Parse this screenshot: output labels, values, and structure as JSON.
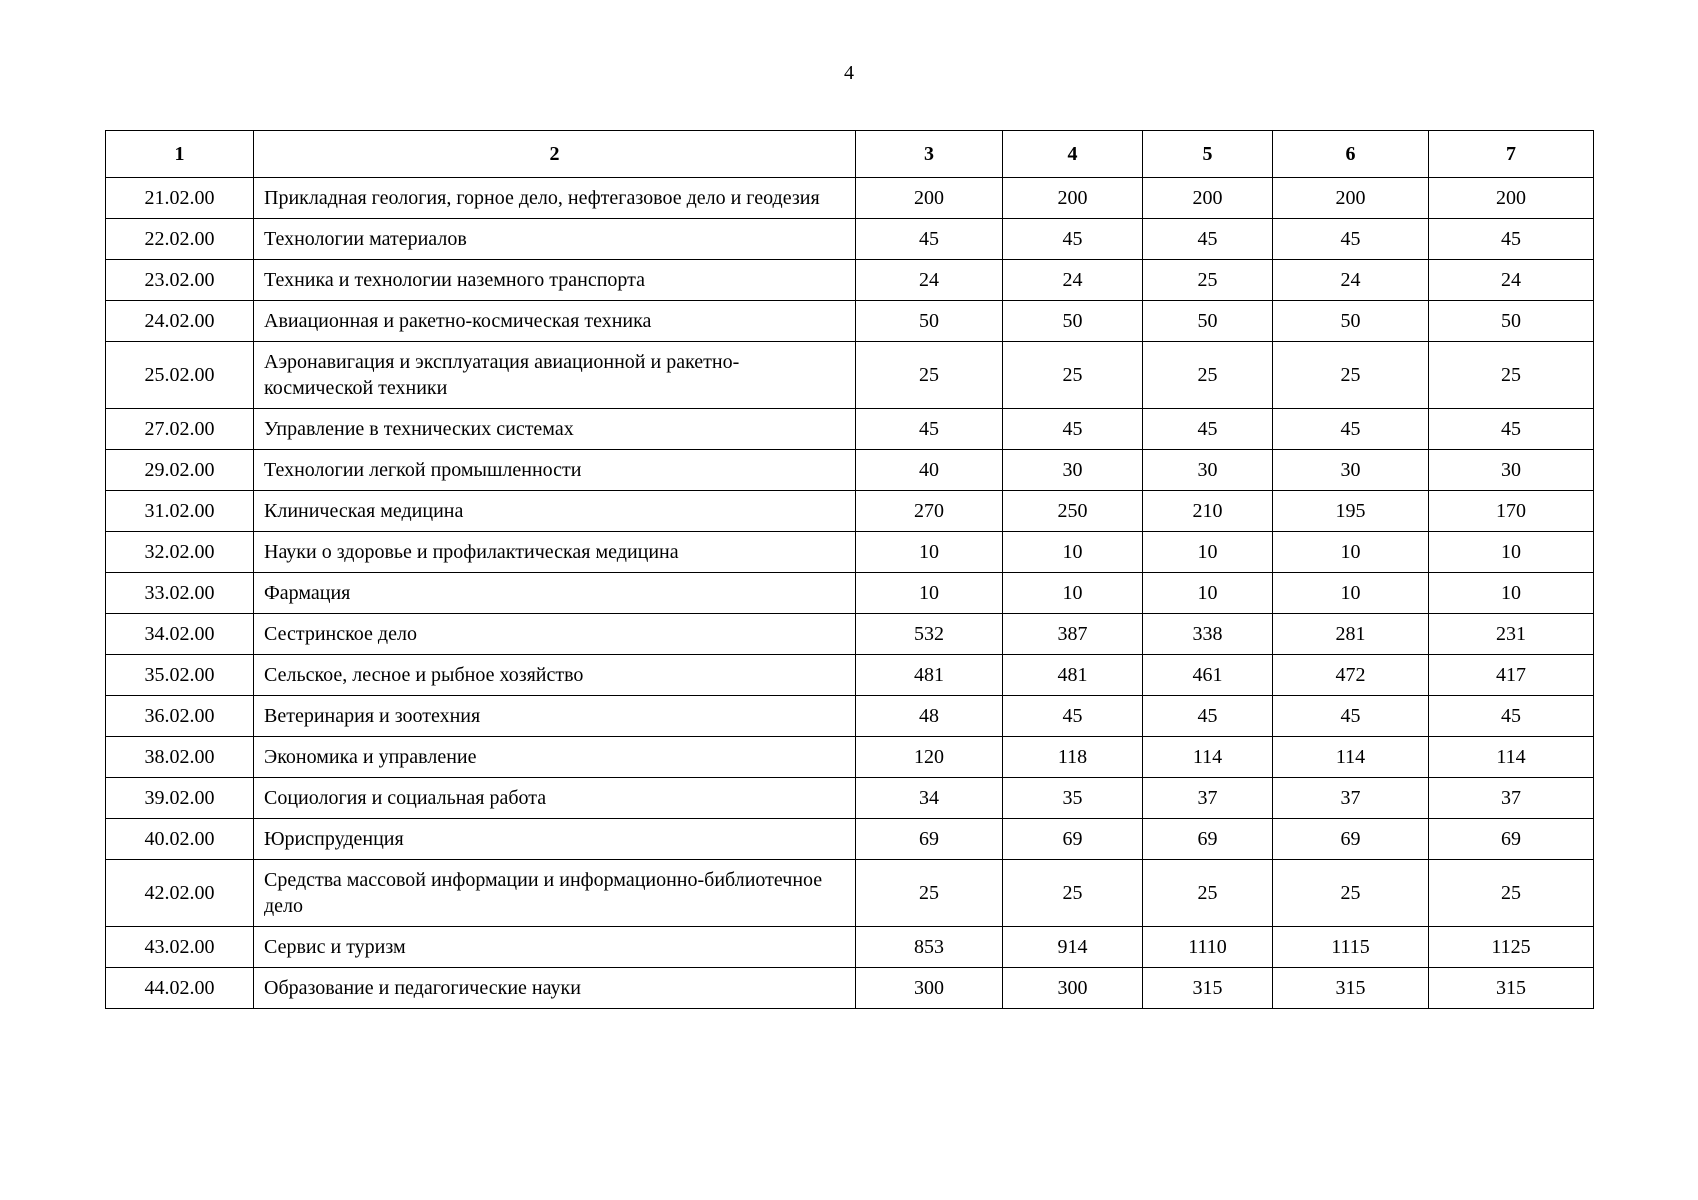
{
  "page": {
    "number": "4"
  },
  "table": {
    "headers": [
      "1",
      "2",
      "3",
      "4",
      "5",
      "6",
      "7"
    ],
    "rows": [
      {
        "code": "21.02.00",
        "name": "Прикладная геология, горное дело, нефтегазовое дело и геодезия",
        "values": [
          "200",
          "200",
          "200",
          "200",
          "200"
        ]
      },
      {
        "code": "22.02.00",
        "name": "Технологии материалов",
        "values": [
          "45",
          "45",
          "45",
          "45",
          "45"
        ]
      },
      {
        "code": "23.02.00",
        "name": "Техника и технологии наземного транспорта",
        "values": [
          "24",
          "24",
          "25",
          "24",
          "24"
        ]
      },
      {
        "code": "24.02.00",
        "name": "Авиационная и ракетно-космическая техника",
        "values": [
          "50",
          "50",
          "50",
          "50",
          "50"
        ]
      },
      {
        "code": "25.02.00",
        "name": "Аэронавигация и эксплуатация авиационной и ракетно-космической техники",
        "values": [
          "25",
          "25",
          "25",
          "25",
          "25"
        ]
      },
      {
        "code": "27.02.00",
        "name": "Управление в технических системах",
        "values": [
          "45",
          "45",
          "45",
          "45",
          "45"
        ]
      },
      {
        "code": "29.02.00",
        "name": "Технологии легкой промышленности",
        "values": [
          "40",
          "30",
          "30",
          "30",
          "30"
        ]
      },
      {
        "code": "31.02.00",
        "name": "Клиническая медицина",
        "values": [
          "270",
          "250",
          "210",
          "195",
          "170"
        ]
      },
      {
        "code": "32.02.00",
        "name": "Науки о здоровье и профилактическая медицина",
        "values": [
          "10",
          "10",
          "10",
          "10",
          "10"
        ]
      },
      {
        "code": "33.02.00",
        "name": "Фармация",
        "values": [
          "10",
          "10",
          "10",
          "10",
          "10"
        ]
      },
      {
        "code": "34.02.00",
        "name": "Сестринское дело",
        "values": [
          "532",
          "387",
          "338",
          "281",
          "231"
        ]
      },
      {
        "code": "35.02.00",
        "name": "Сельское, лесное и рыбное хозяйство",
        "values": [
          "481",
          "481",
          "461",
          "472",
          "417"
        ]
      },
      {
        "code": "36.02.00",
        "name": "Ветеринария и зоотехния",
        "values": [
          "48",
          "45",
          "45",
          "45",
          "45"
        ]
      },
      {
        "code": "38.02.00",
        "name": "Экономика и управление",
        "values": [
          "120",
          "118",
          "114",
          "114",
          "114"
        ]
      },
      {
        "code": "39.02.00",
        "name": "Социология и социальная работа",
        "values": [
          "34",
          "35",
          "37",
          "37",
          "37"
        ]
      },
      {
        "code": "40.02.00",
        "name": "Юриспруденция",
        "values": [
          "69",
          "69",
          "69",
          "69",
          "69"
        ]
      },
      {
        "code": "42.02.00",
        "name": "Средства массовой информации и информационно-библиотечное дело",
        "values": [
          "25",
          "25",
          "25",
          "25",
          "25"
        ]
      },
      {
        "code": "43.02.00",
        "name": "Сервис и туризм",
        "values": [
          "853",
          "914",
          "1110",
          "1115",
          "1125"
        ]
      },
      {
        "code": "44.02.00",
        "name": "Образование и педагогические науки",
        "values": [
          "300",
          "300",
          "315",
          "315",
          "315"
        ]
      }
    ]
  }
}
